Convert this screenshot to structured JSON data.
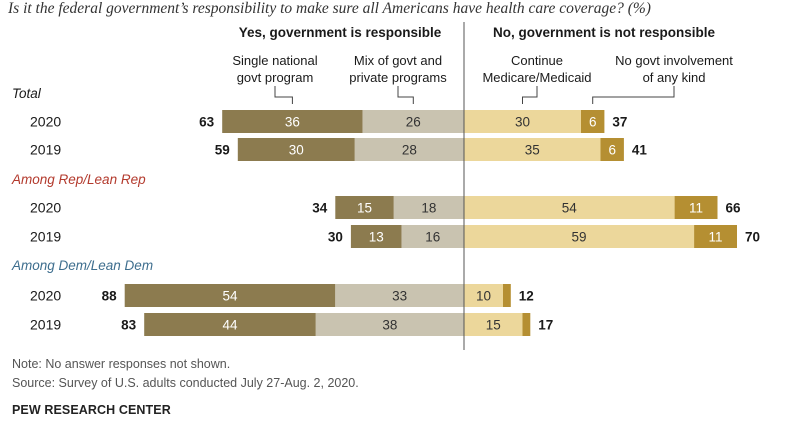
{
  "question": "Is it the federal government’s responsibility to make sure all Americans have health care coverage? (%)",
  "notes": {
    "note": "Note: No answer responses not shown.",
    "source": "Source: Survey of U.S. adults conducted July 27-Aug. 2, 2020.",
    "org": "PEW RESEARCH CENTER"
  },
  "colors": {
    "single": "#8c7b4f",
    "mix": "#c9c3b0",
    "continue": "#ecd79b",
    "none": "#b58f32",
    "rep_group": "#b33a2d",
    "dem_group": "#3e6e8e"
  },
  "chart_data": {
    "type": "bar",
    "orientation": "horizontal diverging stacked",
    "headers": {
      "yes": "Yes, government is responsible",
      "no": "No, government is not responsible"
    },
    "series": [
      {
        "key": "single",
        "name": "Single national govt program",
        "side": "yes"
      },
      {
        "key": "mix",
        "name": "Mix of govt and private programs",
        "side": "yes"
      },
      {
        "key": "continue",
        "name": "Continue Medicare/Medicaid",
        "side": "no"
      },
      {
        "key": "none",
        "name": "No govt involvement of any kind",
        "side": "no"
      }
    ],
    "groups": [
      {
        "label": "Total",
        "style": "total",
        "rows": [
          {
            "year": "2020",
            "single": 36,
            "mix": 26,
            "continue": 30,
            "none": 6,
            "yes_total": 63,
            "no_total": 37
          },
          {
            "year": "2019",
            "single": 30,
            "mix": 28,
            "continue": 35,
            "none": 6,
            "yes_total": 59,
            "no_total": 41
          }
        ]
      },
      {
        "label": "Among Rep/Lean Rep",
        "style": "rep",
        "rows": [
          {
            "year": "2020",
            "single": 15,
            "mix": 18,
            "continue": 54,
            "none": 11,
            "yes_total": 34,
            "no_total": 66
          },
          {
            "year": "2019",
            "single": 13,
            "mix": 16,
            "continue": 59,
            "none": 11,
            "yes_total": 30,
            "no_total": 70
          }
        ]
      },
      {
        "label": "Among Dem/Lean Dem",
        "style": "dem",
        "rows": [
          {
            "year": "2020",
            "single": 54,
            "mix": 33,
            "continue": 10,
            "none": 2,
            "yes_total": 88,
            "no_total": 12
          },
          {
            "year": "2019",
            "single": 44,
            "mix": 38,
            "continue": 15,
            "none": 2,
            "yes_total": 83,
            "no_total": 17
          }
        ]
      }
    ]
  }
}
